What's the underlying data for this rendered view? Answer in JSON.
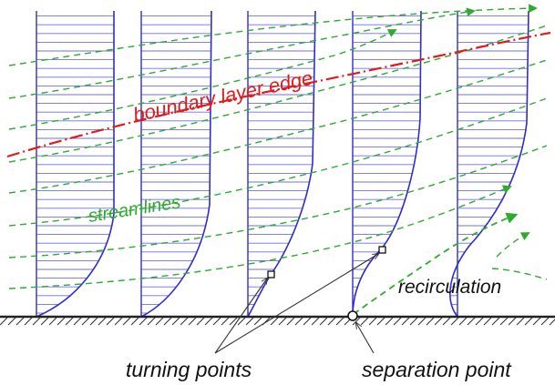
{
  "labels": {
    "boundary_layer_edge": "boundary layer edge",
    "streamlines": "streamlines",
    "recirculation": "recirculation",
    "turning_points": "turning points",
    "separation_point": "separation point"
  },
  "colors": {
    "profile": "#2f2fc8",
    "profile_hatch": "#7070e0",
    "streamline": "#2faa2f",
    "boundary_edge": "#e01b1b",
    "wall": "#222222",
    "text": "#111111"
  }
}
